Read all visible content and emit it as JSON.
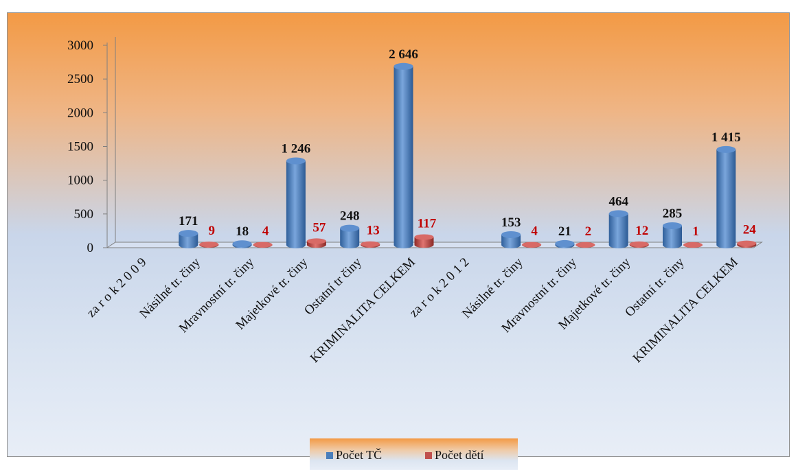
{
  "chart_data": {
    "type": "bar",
    "categories": [
      "za  r o k  2 0 0 9",
      "Násilné tr. činy",
      "Mravnostní tr. činy",
      "Majetkové tr. činy",
      "Ostatní tr činy",
      "KRIMINALITA CELKEM",
      "za  r o k  2 0 1 2",
      "Násilné tr. činy",
      "Mravnostní tr. činy",
      "Majetkové tr. činy",
      "Ostatní tr. činy",
      "KRIMINALITA CELKEM"
    ],
    "series": [
      {
        "name": "Počet TČ",
        "color": "#4a7ebb",
        "values": [
          null,
          171,
          18,
          1246,
          248,
          2646,
          null,
          153,
          21,
          464,
          285,
          1415
        ],
        "labels": [
          "",
          "171",
          "18",
          "1 246",
          "248",
          "2 646",
          "",
          "153",
          "21",
          "464",
          "285",
          "1 415"
        ]
      },
      {
        "name": "Počet dětí",
        "color": "#c0504d",
        "values": [
          null,
          9,
          4,
          57,
          13,
          117,
          null,
          4,
          2,
          12,
          1,
          24
        ],
        "labels": [
          "",
          "9",
          "4",
          "57",
          "13",
          "117",
          "",
          "4",
          "2",
          "12",
          "1",
          "24"
        ]
      }
    ],
    "yticks": [
      "0",
      "500",
      "1000",
      "1500",
      "2000",
      "2500",
      "3000"
    ],
    "ylim": [
      0,
      3000
    ],
    "legend": "bottom",
    "grid": false
  }
}
